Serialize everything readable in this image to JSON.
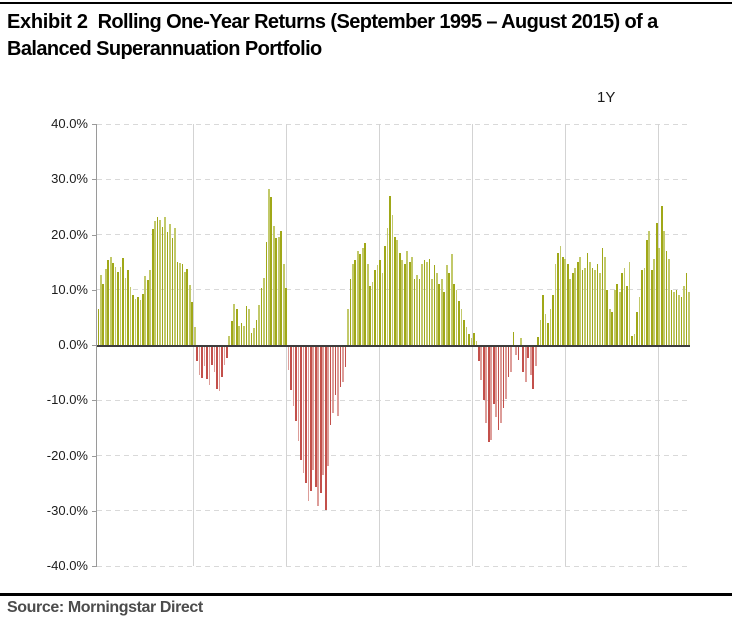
{
  "header": {
    "exhibit_label": "Exhibit 2",
    "title_line1": "Rolling One-Year Returns (September 1995 – August 2015) of a",
    "title_line2": "Balanced Superannuation Portfolio"
  },
  "footer": {
    "source": "Source: Morningstar Direct"
  },
  "chart_data": {
    "type": "bar",
    "title": "Rolling One-Year Returns (September 1995 – August 2015) of a Balanced Superannuation Portfolio",
    "series_label": "1Y",
    "x_start": "September 1995",
    "x_end": "August 2015",
    "frequency": "monthly",
    "unit": "%",
    "ylim": [
      -40,
      40
    ],
    "ytick_labels": [
      "40.0%",
      "30.0%",
      "20.0%",
      "10.0%",
      "0.0%",
      "-10.0%",
      "-20.0%",
      "-30.0%",
      "-40.0%"
    ],
    "grid": {
      "horizontal": "dashed",
      "vertical": "solid",
      "x_gridline_count": 6
    },
    "legend_position": "top-right",
    "colors": {
      "positive": "#a0a818",
      "positive_light": "#c2c96a",
      "negative": "#c3504b",
      "negative_light": "#dd9d99",
      "gridline": "#d9d9d9",
      "axis": "#9a9a9a",
      "zero_line": "#3d3d3d"
    },
    "values": [
      6.5,
      12.7,
      11.0,
      13.8,
      15.3,
      16.0,
      14.8,
      14.2,
      13.3,
      14.1,
      15.8,
      12.2,
      13.5,
      10.5,
      9.0,
      8.3,
      8.7,
      8.1,
      9.3,
      12.5,
      11.8,
      13.5,
      21.0,
      22.4,
      23.1,
      22.6,
      21.3,
      23.2,
      20.5,
      21.9,
      19.4,
      21.1,
      15.1,
      14.8,
      14.6,
      13.2,
      13.8,
      10.9,
      7.8,
      3.3,
      -2.6,
      -5.0,
      -5.6,
      -3.4,
      -5.8,
      -6.9,
      -3.2,
      -4.6,
      -7.6,
      -8.0,
      -5.4,
      -3.3,
      -2.0,
      1.6,
      4.4,
      7.4,
      6.6,
      3.4,
      4.0,
      3.5,
      7.0,
      6.6,
      2.2,
      3.0,
      4.6,
      7.2,
      10.4,
      12.1,
      18.6,
      28.2,
      26.8,
      21.5,
      19.3,
      19.6,
      20.6,
      14.6,
      10.4,
      -4.2,
      -7.8,
      -10.6,
      -13.4,
      -17.0,
      -20.4,
      -22.8,
      -24.6,
      -27.8,
      -26.0,
      -22.3,
      -25.4,
      -28.8,
      -26.4,
      -23.2,
      -29.5,
      -21.6,
      -14.2,
      -12.0,
      -8.6,
      -12.4,
      -7.2,
      -6.4,
      -3.6,
      6.6,
      12.0,
      14.6,
      15.4,
      17.0,
      16.4,
      17.6,
      18.4,
      14.6,
      10.6,
      11.4,
      13.6,
      14.4,
      15.4,
      13.0,
      18.0,
      21.2,
      27.0,
      23.6,
      19.6,
      19.0,
      16.6,
      15.4,
      14.6,
      17.0,
      15.0,
      16.0,
      12.0,
      12.6,
      12.0,
      14.6,
      15.4,
      15.0,
      15.6,
      12.0,
      14.4,
      13.0,
      11.0,
      12.0,
      9.6,
      14.4,
      13.0,
      16.4,
      11.0,
      10.0,
      8.0,
      6.5,
      4.5,
      3.3,
      2.0,
      1.2,
      2.2,
      0.8,
      -2.5,
      -6.0,
      -9.6,
      -13.8,
      -17.2,
      -16.8,
      -10.4,
      -12.6,
      -15.0,
      -13.8,
      -11.0,
      -9.4,
      -5.5,
      -4.5,
      2.3,
      -1.5,
      -2.3,
      1.2,
      -4.5,
      -6.3,
      -2.0,
      -5.0,
      -7.6,
      -3.5,
      1.5,
      4.5,
      9.0,
      5.6,
      4.0,
      6.6,
      9.0,
      14.6,
      16.6,
      18.0,
      16.0,
      15.6,
      14.6,
      12.0,
      13.0,
      14.0,
      15.0,
      16.0,
      13.6,
      14.0,
      16.6,
      15.0,
      14.0,
      13.6,
      14.6,
      13.0,
      17.6,
      16.0,
      10.0,
      6.6,
      6.0,
      10.0,
      11.0,
      9.6,
      13.0,
      14.0,
      10.6,
      15.0,
      1.6,
      2.0,
      6.0,
      8.6,
      13.6,
      14.0,
      19.0,
      20.6,
      13.6,
      15.6,
      22.0,
      17.6,
      25.2,
      20.6,
      17.0,
      15.6,
      10.0,
      9.6,
      10.0,
      9.0,
      8.6,
      10.6,
      13.0,
      9.6
    ]
  }
}
